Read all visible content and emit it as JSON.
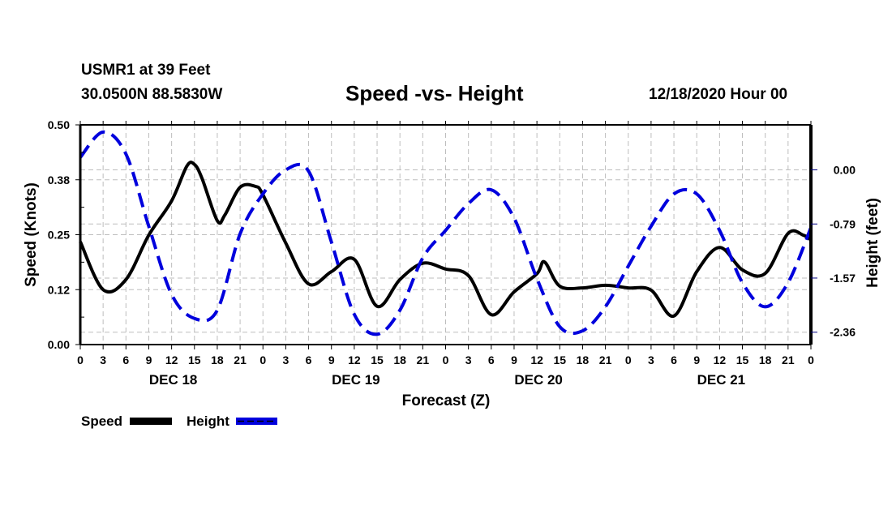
{
  "header": {
    "station": "USMR1 at 39 Feet",
    "coords": "30.0500N 88.5830W",
    "title": "Speed -vs- Height",
    "datetime": "12/18/2020 Hour 00"
  },
  "legend": {
    "items": [
      {
        "label": "Speed",
        "color": "#000000",
        "style": "solid"
      },
      {
        "label": "Height",
        "color": "#0000dd",
        "style": "dashed"
      }
    ]
  },
  "chart_data": {
    "type": "line",
    "title": "Speed -vs- Height",
    "xlabel": "Forecast (Z)",
    "ylabel": "Speed (Knots)",
    "y2label": "Height (feet)",
    "xlim": [
      0,
      96
    ],
    "ylim": [
      0,
      0.5
    ],
    "y2lim": [
      -2.54,
      0.654
    ],
    "grid": true,
    "legend_position": "bottom-left",
    "x_tick_labels": [
      "0",
      "3",
      "6",
      "9",
      "12",
      "15",
      "18",
      "21",
      "0",
      "3",
      "6",
      "9",
      "12",
      "15",
      "18",
      "21",
      "0",
      "3",
      "6",
      "9",
      "12",
      "15",
      "18",
      "21",
      "0",
      "3",
      "6",
      "9",
      "12",
      "15",
      "18",
      "21",
      "0"
    ],
    "day_labels": [
      {
        "label": "DEC 18",
        "hour": 12
      },
      {
        "label": "DEC 19",
        "hour": 36
      },
      {
        "label": "DEC 20",
        "hour": 60
      },
      {
        "label": "DEC 21",
        "hour": 84
      }
    ],
    "y_ticks": [
      "0.00",
      "0.12",
      "0.25",
      "0.38",
      "0.50"
    ],
    "y_tick_values": [
      0,
      0.125,
      0.25,
      0.375,
      0.5
    ],
    "y2_ticks": [
      "0.00",
      "-0.79",
      "-1.57",
      "-2.36"
    ],
    "y2_tick_values": [
      0,
      -0.787,
      -1.573,
      -2.36
    ],
    "series": [
      {
        "name": "Speed",
        "axis": "left",
        "color": "#000000",
        "x": [
          0,
          3,
          6,
          9,
          12,
          14,
          15,
          16,
          18,
          19,
          21,
          23,
          24,
          27,
          30,
          33,
          36,
          39,
          42,
          45,
          48,
          51,
          54,
          57,
          60,
          61,
          63,
          66,
          69,
          72,
          75,
          78,
          81,
          84,
          87,
          90,
          93,
          95,
          96
        ],
        "values": [
          0.234,
          0.125,
          0.148,
          0.249,
          0.327,
          0.406,
          0.41,
          0.378,
          0.282,
          0.295,
          0.358,
          0.36,
          0.341,
          0.231,
          0.138,
          0.166,
          0.194,
          0.087,
          0.148,
          0.185,
          0.172,
          0.157,
          0.068,
          0.12,
          0.161,
          0.188,
          0.133,
          0.129,
          0.135,
          0.129,
          0.124,
          0.065,
          0.166,
          0.221,
          0.17,
          0.162,
          0.253,
          0.249,
          0.238
        ]
      },
      {
        "name": "Height",
        "axis": "right",
        "color": "#0000dd",
        "x": [
          0,
          3,
          6,
          9,
          12,
          15,
          18,
          21,
          24,
          27,
          30,
          33,
          36,
          39,
          42,
          45,
          48,
          51,
          54,
          57,
          60,
          63,
          66,
          69,
          72,
          75,
          78,
          81,
          84,
          87,
          90,
          93,
          96
        ],
        "values": [
          0.18,
          0.55,
          0.23,
          -0.82,
          -1.81,
          -2.16,
          -2.04,
          -0.93,
          -0.35,
          0.0,
          -0.02,
          -1.05,
          -2.1,
          -2.39,
          -2.04,
          -1.28,
          -0.88,
          -0.49,
          -0.29,
          -0.7,
          -1.58,
          -2.28,
          -2.34,
          -1.99,
          -1.4,
          -0.82,
          -0.35,
          -0.35,
          -0.88,
          -1.64,
          -1.99,
          -1.64,
          -0.84
        ]
      }
    ]
  }
}
